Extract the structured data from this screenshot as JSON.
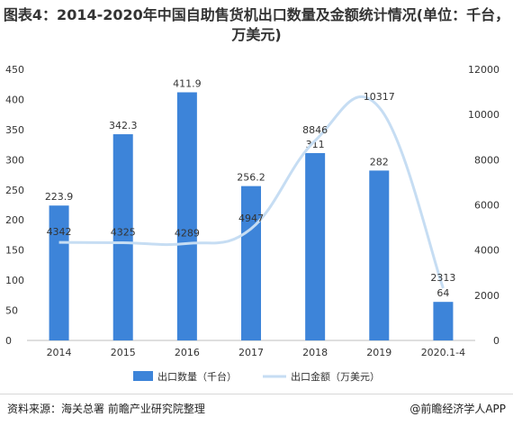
{
  "title": "图表4：2014-2020年中国自助售货机出口数量及金额统计情况(单位：千台，万美元)",
  "chart_data": {
    "type": "bar",
    "categories": [
      "2014",
      "2015",
      "2016",
      "2017",
      "2018",
      "2019",
      "2020.1-4"
    ],
    "series": [
      {
        "name": "出口数量（千台）",
        "type": "bar",
        "axis": "left",
        "values": [
          223.9,
          342.3,
          411.9,
          256.2,
          311,
          282,
          64
        ],
        "color": "#3d84d9"
      },
      {
        "name": "出口金额（万美元）",
        "type": "line",
        "axis": "right",
        "values": [
          4342,
          4325,
          4289,
          4947,
          8846,
          10317,
          2313
        ],
        "color": "#c6ddf3"
      }
    ],
    "ylim_left": [
      0,
      450
    ],
    "yticks_left": [
      0,
      50,
      100,
      150,
      200,
      250,
      300,
      350,
      400,
      450
    ],
    "ylim_right": [
      0,
      12000
    ],
    "yticks_right": [
      0,
      2000,
      4000,
      6000,
      8000,
      10000,
      12000
    ],
    "legend_position": "bottom",
    "grid": false
  },
  "footer": {
    "source": "资料来源：海关总署 前瞻产业研究院整理",
    "brand": "@前瞻经济学人APP"
  }
}
